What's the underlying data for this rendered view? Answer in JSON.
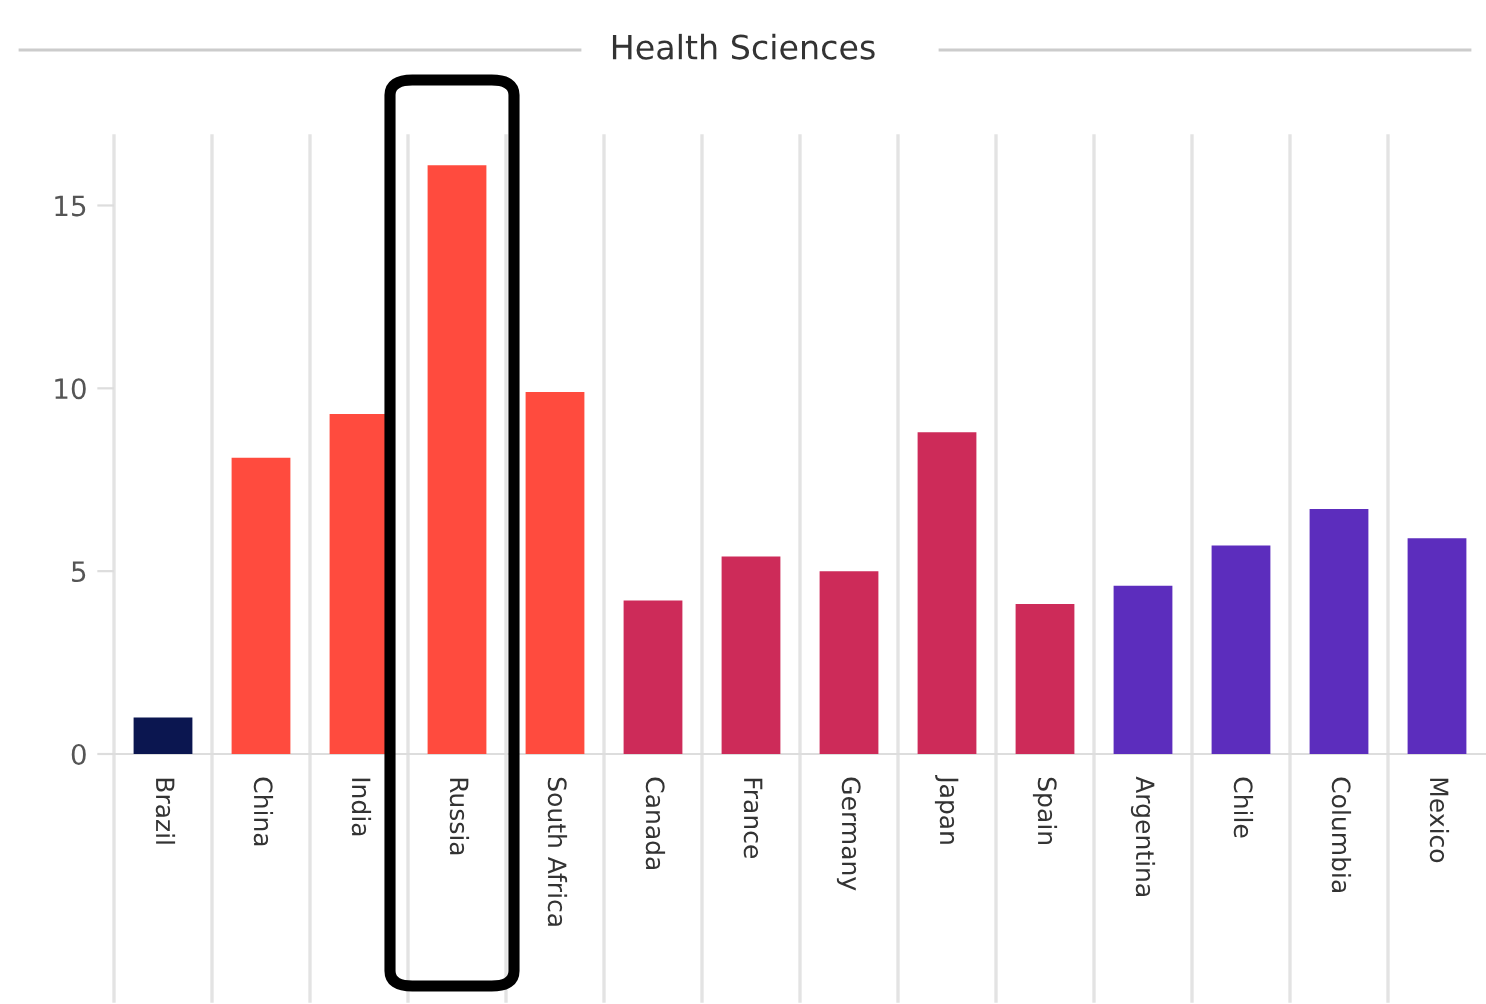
{
  "chart_data": {
    "type": "bar",
    "title": "Health Sciences",
    "categories": [
      "Brazil",
      "China",
      "India",
      "Russia",
      "South Africa",
      "Canada",
      "France",
      "Germany",
      "Japan",
      "Spain",
      "Argentina",
      "Chile",
      "Columbia",
      "Mexico"
    ],
    "values": [
      1.0,
      8.1,
      9.3,
      16.1,
      9.9,
      4.2,
      5.4,
      5.0,
      8.8,
      4.1,
      4.6,
      5.7,
      6.7,
      5.9
    ],
    "colors": [
      "#0b1650",
      "#ff4b3e",
      "#ff4b3e",
      "#ff4b3e",
      "#ff4b3e",
      "#cd2b59",
      "#cd2b59",
      "#cd2b59",
      "#cd2b59",
      "#cd2b59",
      "#5c2dbd",
      "#5c2dbd",
      "#5c2dbd",
      "#5c2dbd"
    ],
    "ylim": [
      0,
      16.9
    ],
    "yticks": [
      0,
      5,
      10,
      15
    ],
    "grid": "x"
  }
}
